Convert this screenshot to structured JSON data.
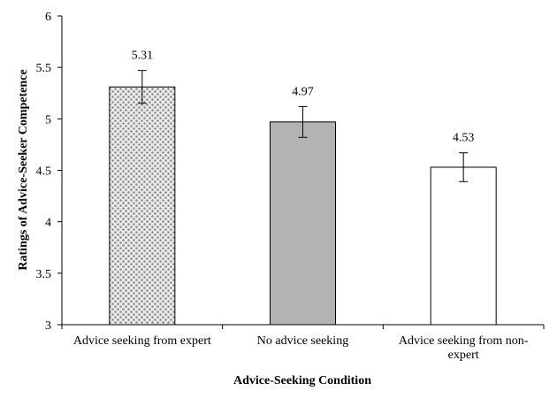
{
  "chart_data": {
    "type": "bar",
    "title": "",
    "xlabel": "Advice-Seeking Condition",
    "ylabel": "Ratings of Advice-Seeker Competence",
    "ylim": [
      3,
      6
    ],
    "yticks": [
      "3",
      "3.5",
      "4",
      "4.5",
      "5",
      "5.5",
      "6"
    ],
    "grid": false,
    "categories": [
      [
        "Advice seeking from expert"
      ],
      [
        "No advice seeking"
      ],
      [
        "Advice seeking from non-",
        "expert"
      ]
    ],
    "values": [
      5.31,
      4.97,
      4.53
    ],
    "value_labels": [
      "5.31",
      "4.97",
      "4.53"
    ],
    "error_bars": [
      0.16,
      0.15,
      0.14
    ],
    "fills": [
      "dotted-gray",
      "#b3b3b3",
      "#ffffff"
    ]
  }
}
